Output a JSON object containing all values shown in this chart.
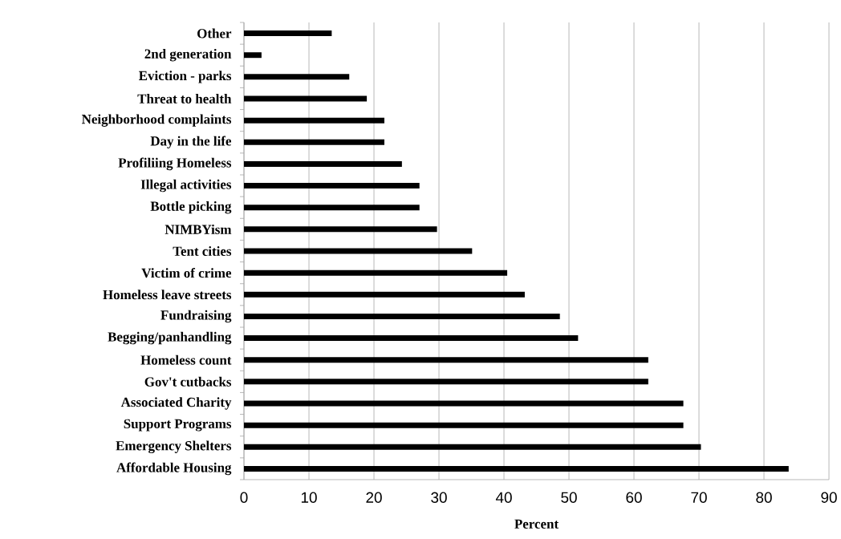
{
  "chart_data": {
    "type": "bar",
    "orientation": "horizontal",
    "xlabel": "Percent",
    "categories": [
      "Other",
      "2nd generation",
      "Eviction - parks",
      "Threat to health",
      "Neighborhood complaints",
      "Day in the life",
      "Profiliing Homeless",
      "Illegal activities",
      "Bottle picking",
      "NIMBYism",
      "Tent cities",
      "Victim of crime",
      "Homeless leave streets",
      "Fundraising",
      "Begging/panhandling",
      "Homeless count",
      "Gov't cutbacks",
      "Associated Charity",
      "Support Programs",
      "Emergency Shelters",
      "Affordable Housing"
    ],
    "values": [
      13.5,
      2.7,
      16.2,
      18.9,
      21.6,
      21.6,
      24.3,
      27.0,
      27.0,
      29.7,
      35.1,
      40.5,
      43.2,
      48.6,
      51.4,
      62.2,
      62.2,
      67.6,
      67.6,
      70.3,
      83.8
    ],
    "color": "#000000",
    "xlim": [
      0,
      90
    ],
    "xticks": [
      0,
      10,
      20,
      30,
      40,
      50,
      60,
      70,
      80,
      90
    ],
    "grid": "x"
  }
}
